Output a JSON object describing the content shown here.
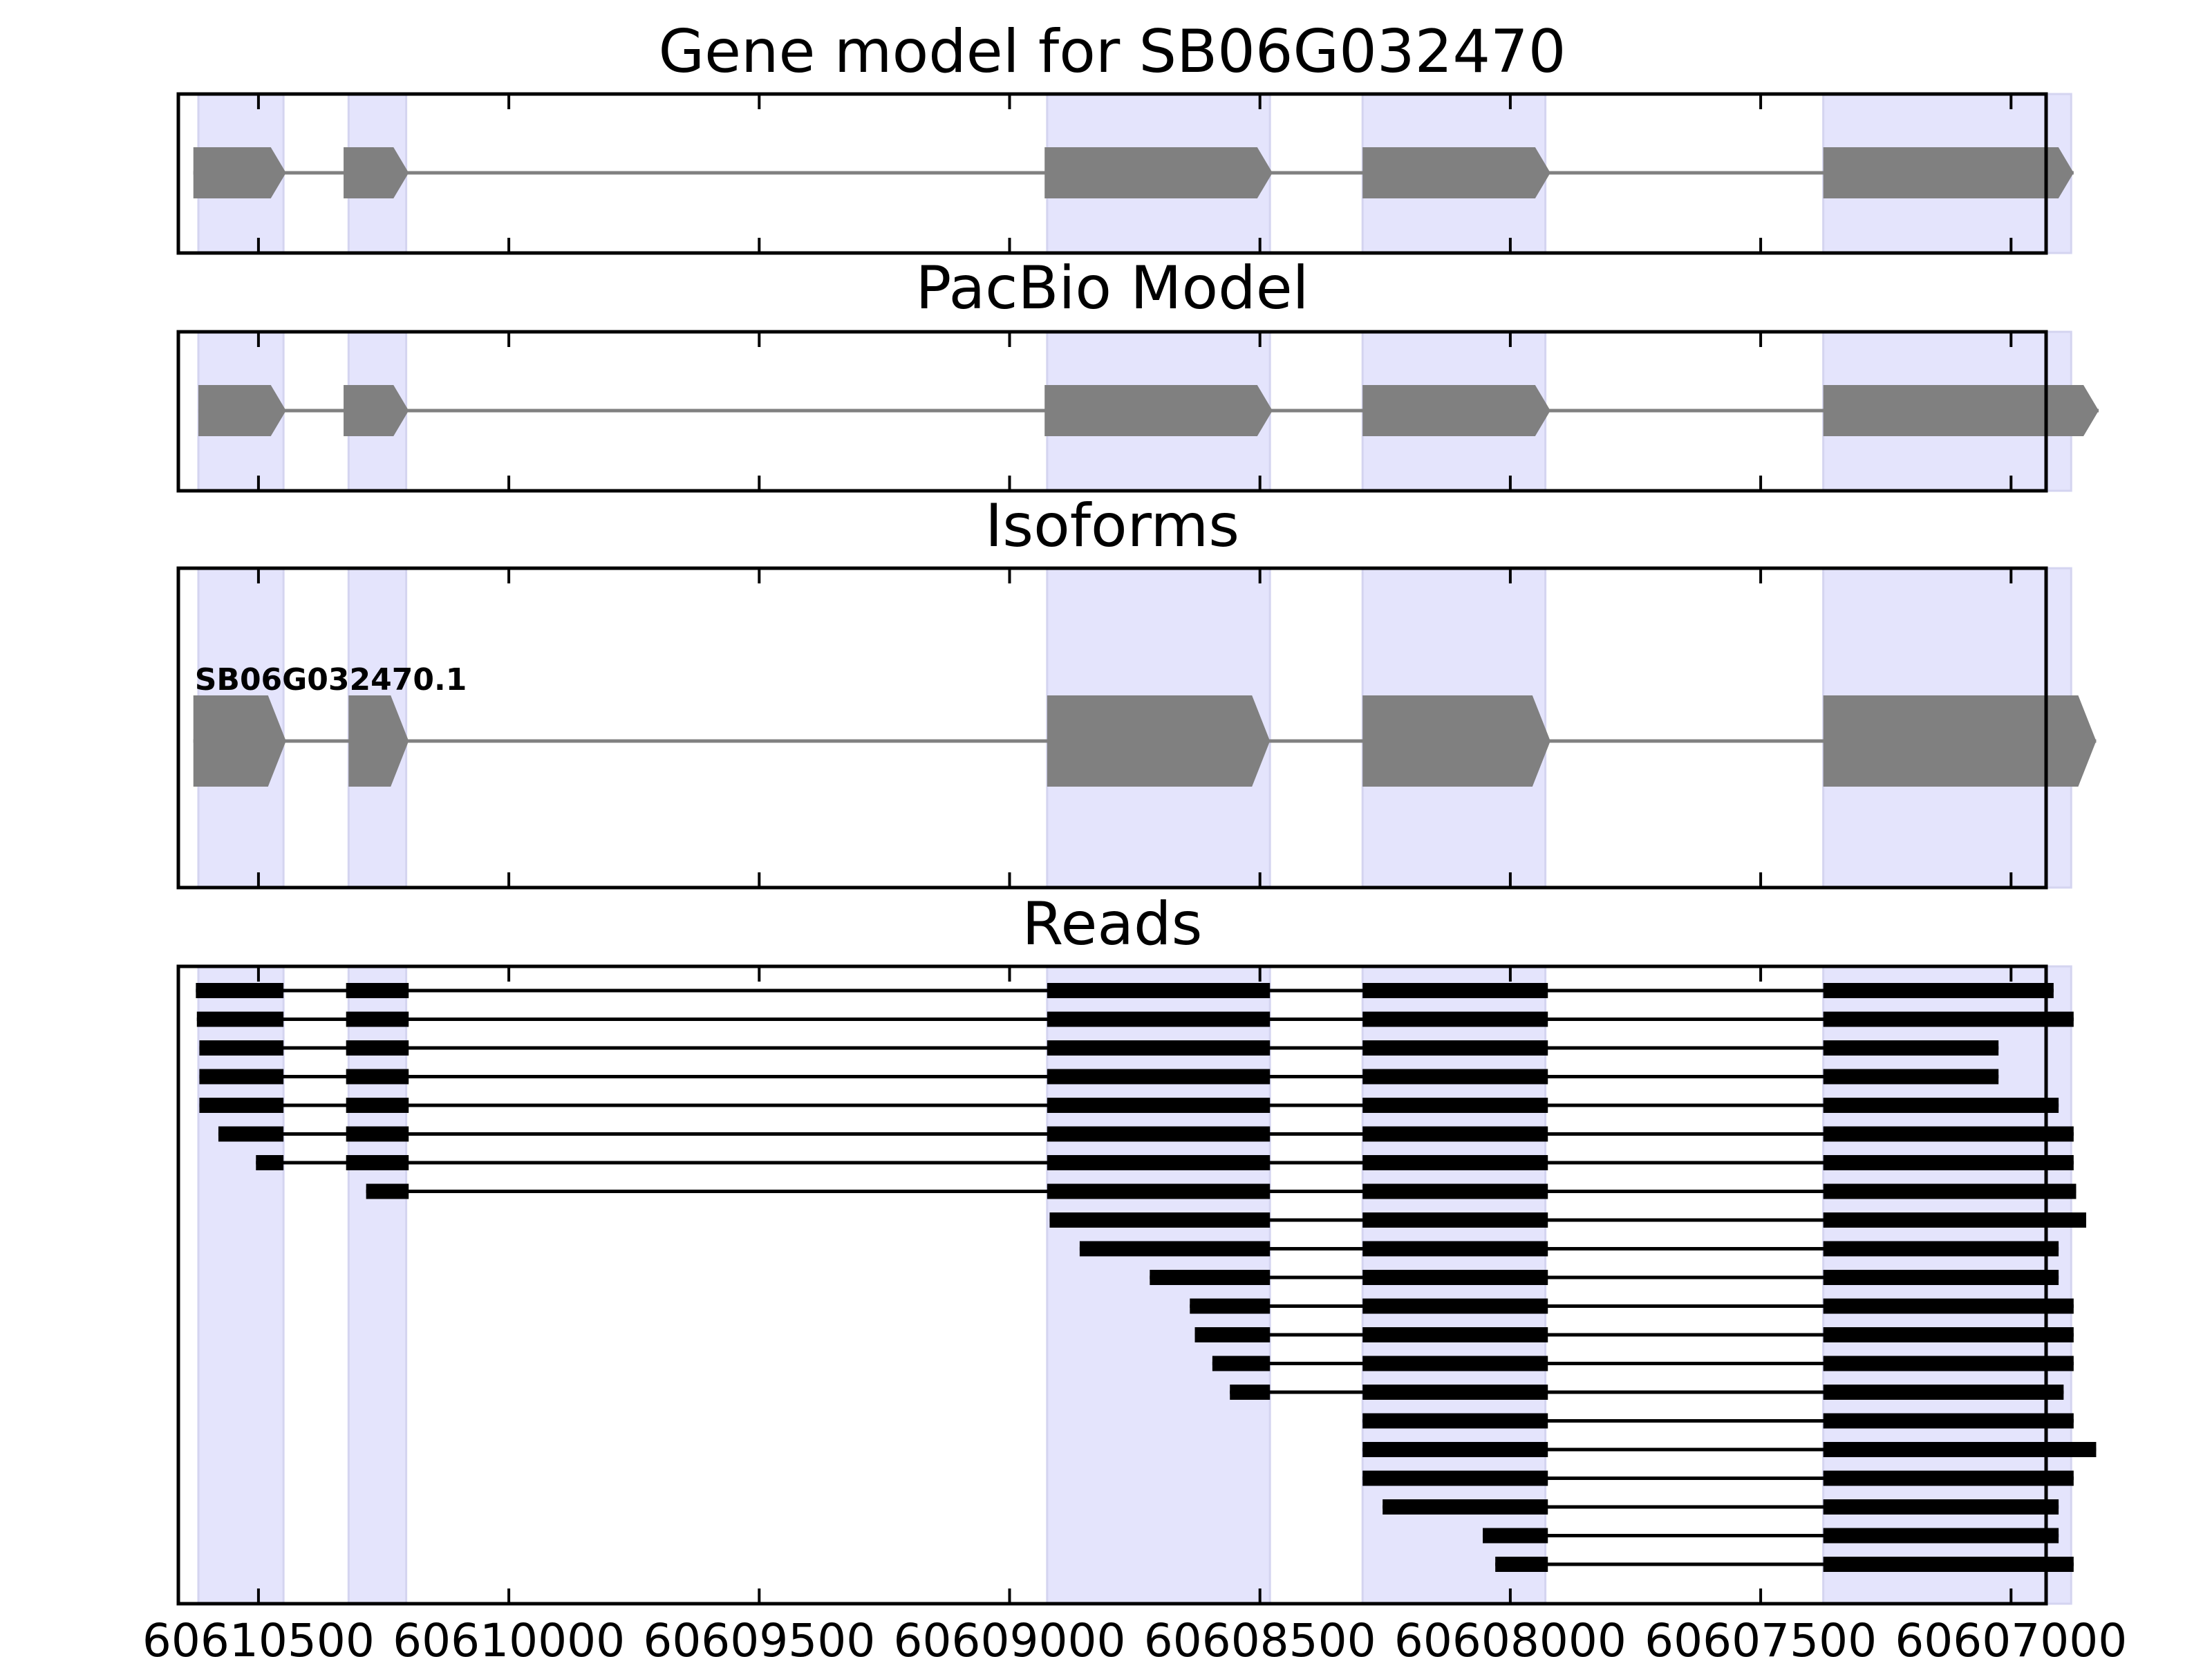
{
  "chart_data": {
    "type": "gene-track",
    "x_axis": {
      "range": [
        60610660,
        60606930
      ],
      "reversed": true,
      "ticks": [
        60610500,
        60610000,
        60609500,
        60609000,
        60608500,
        60608000,
        60607500,
        60607000
      ],
      "tick_labels": [
        "60610500",
        "60610000",
        "60609500",
        "60609000",
        "60608500",
        "60608000",
        "60607500",
        "60607000"
      ]
    },
    "highlight_color": "#e4e4fc",
    "exon_color": "#808080",
    "read_color": "#000000",
    "highlight_regions": [
      [
        60610620,
        60610450
      ],
      [
        60610320,
        60610205
      ],
      [
        60608925,
        60608480
      ],
      [
        60608295,
        60607930
      ],
      [
        60607375,
        60606880
      ]
    ],
    "panels": [
      {
        "title": "Gene model for SB06G032470",
        "exons": [
          [
            60610630,
            60610445
          ],
          [
            60610330,
            60610200
          ],
          [
            60608930,
            60608475
          ],
          [
            60608295,
            60607920
          ],
          [
            60607375,
            60606875
          ]
        ]
      },
      {
        "title": "PacBio Model",
        "exons": [
          [
            60610620,
            60610445
          ],
          [
            60610330,
            60610200
          ],
          [
            60608930,
            60608475
          ],
          [
            60608295,
            60607920
          ],
          [
            60607375,
            60606825
          ]
        ]
      },
      {
        "title": "Isoforms",
        "isoform_label": "SB06G032470.1",
        "exons": [
          [
            60610630,
            60610445
          ],
          [
            60610320,
            60610200
          ],
          [
            60608925,
            60608480
          ],
          [
            60608295,
            60607920
          ],
          [
            60607375,
            60606830
          ]
        ]
      },
      {
        "title": "Reads",
        "reads": [
          [
            [
              60610625,
              60610450
            ],
            [
              60610325,
              60610200
            ],
            [
              60608925,
              60608480
            ],
            [
              60608295,
              60607925
            ],
            [
              60607375,
              60606915
            ]
          ],
          [
            [
              60610623,
              60610450
            ],
            [
              60610325,
              60610200
            ],
            [
              60608925,
              60608480
            ],
            [
              60608295,
              60607925
            ],
            [
              60607375,
              60606875
            ]
          ],
          [
            [
              60610618,
              60610450
            ],
            [
              60610325,
              60610200
            ],
            [
              60608925,
              60608480
            ],
            [
              60608295,
              60607925
            ],
            [
              60607375,
              60607025
            ]
          ],
          [
            [
              60610618,
              60610450
            ],
            [
              60610325,
              60610200
            ],
            [
              60608925,
              60608480
            ],
            [
              60608295,
              60607925
            ],
            [
              60607375,
              60607025
            ]
          ],
          [
            [
              60610618,
              60610450
            ],
            [
              60610325,
              60610200
            ],
            [
              60608925,
              60608480
            ],
            [
              60608295,
              60607925
            ],
            [
              60607375,
              60606905
            ]
          ],
          [
            [
              60610580,
              60610450
            ],
            [
              60610325,
              60610200
            ],
            [
              60608925,
              60608480
            ],
            [
              60608295,
              60607925
            ],
            [
              60607375,
              60606875
            ]
          ],
          [
            [
              60610505,
              60610450
            ],
            [
              60610325,
              60610200
            ],
            [
              60608925,
              60608480
            ],
            [
              60608295,
              60607925
            ],
            [
              60607375,
              60606875
            ]
          ],
          [
            [
              60610285,
              60610200
            ],
            [
              60608925,
              60608480
            ],
            [
              60608295,
              60607925
            ],
            [
              60607375,
              60606870
            ]
          ],
          [
            [
              60608920,
              60608480
            ],
            [
              60608295,
              60607925
            ],
            [
              60607375,
              60606850
            ]
          ],
          [
            [
              60608860,
              60608480
            ],
            [
              60608295,
              60607925
            ],
            [
              60607375,
              60606905
            ]
          ],
          [
            [
              60608720,
              60608480
            ],
            [
              60608295,
              60607925
            ],
            [
              60607375,
              60606905
            ]
          ],
          [
            [
              60608640,
              60608480
            ],
            [
              60608295,
              60607925
            ],
            [
              60607375,
              60606875
            ]
          ],
          [
            [
              60608630,
              60608480
            ],
            [
              60608295,
              60607925
            ],
            [
              60607375,
              60606875
            ]
          ],
          [
            [
              60608595,
              60608480
            ],
            [
              60608295,
              60607925
            ],
            [
              60607375,
              60606875
            ]
          ],
          [
            [
              60608560,
              60608480
            ],
            [
              60608295,
              60607925
            ],
            [
              60607375,
              60606895
            ]
          ],
          [
            [
              60608295,
              60607925
            ],
            [
              60607375,
              60606875
            ]
          ],
          [
            [
              60608295,
              60607925
            ],
            [
              60607375,
              60606830
            ]
          ],
          [
            [
              60608295,
              60607925
            ],
            [
              60607375,
              60606875
            ]
          ],
          [
            [
              60608255,
              60607925
            ],
            [
              60607375,
              60606905
            ]
          ],
          [
            [
              60608055,
              60607925
            ],
            [
              60607375,
              60606905
            ]
          ],
          [
            [
              60608030,
              60607925
            ],
            [
              60607375,
              60606875
            ]
          ]
        ]
      }
    ]
  }
}
